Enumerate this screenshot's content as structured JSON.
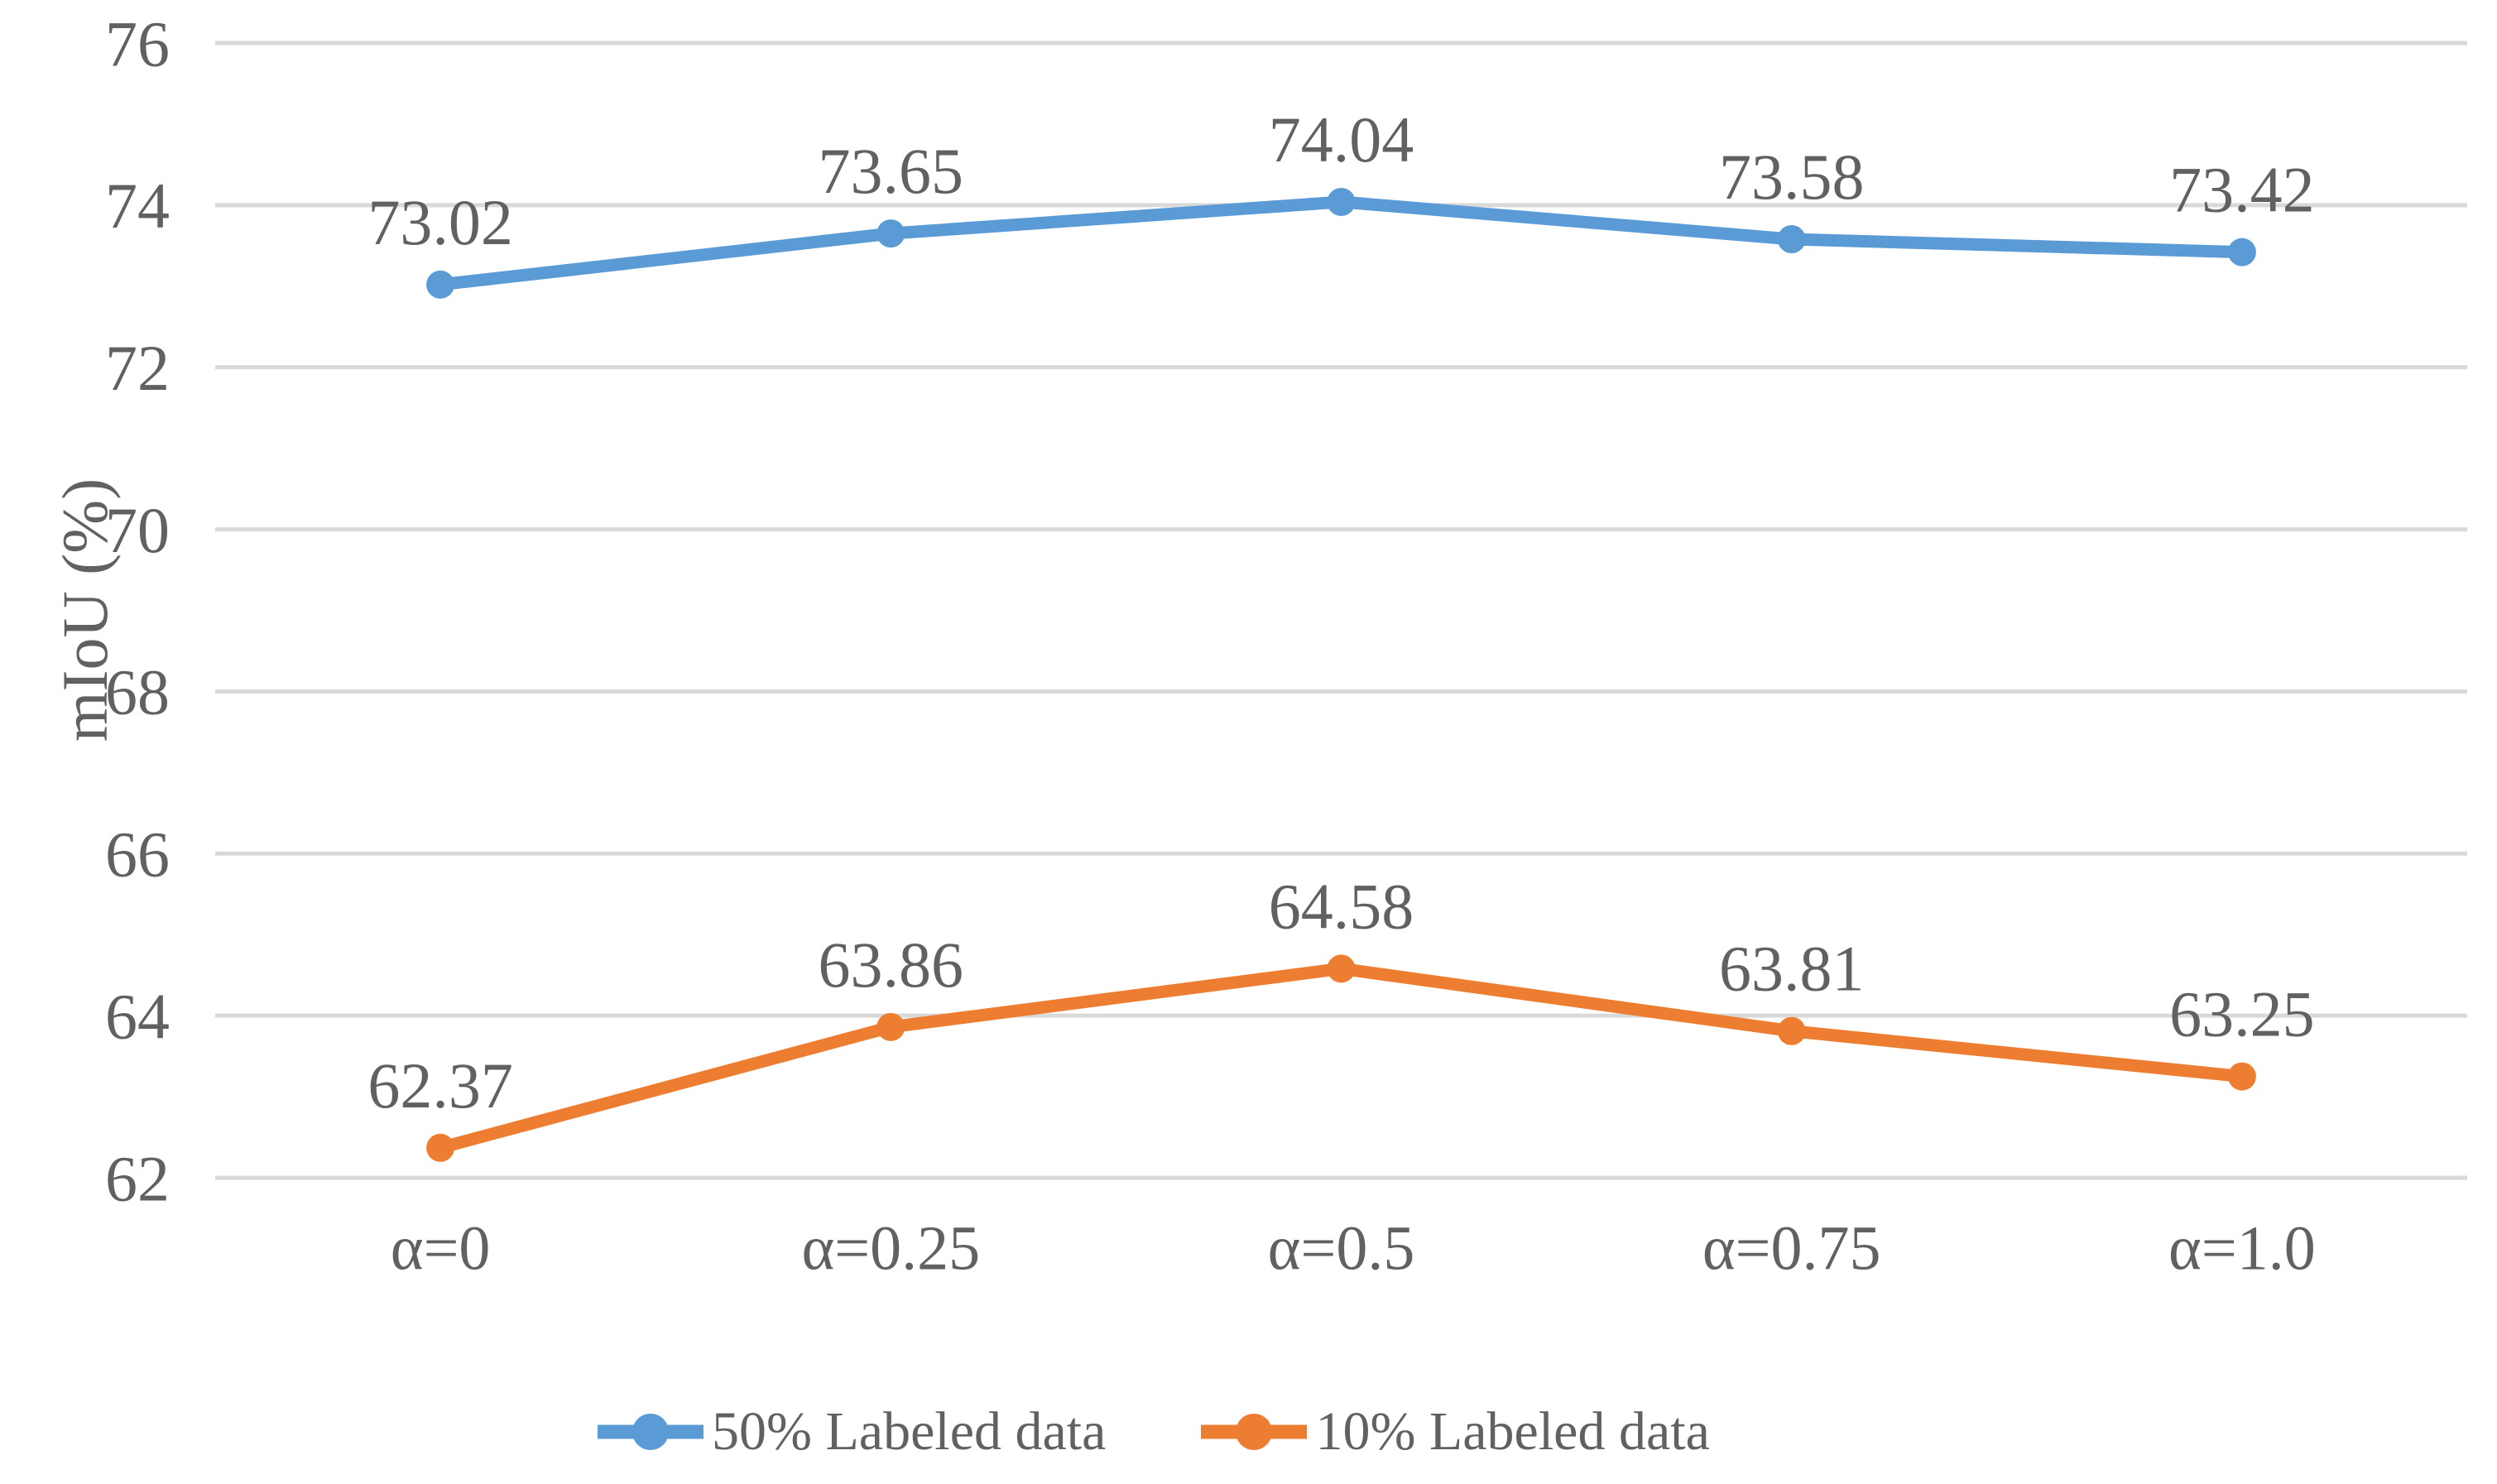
{
  "chart_data": {
    "type": "line",
    "title": "",
    "xlabel": "",
    "ylabel": "mIoU (%)",
    "categories": [
      "α=0",
      "α=0.25",
      "α=0.5",
      "α=0.75",
      "α=1.0"
    ],
    "series": [
      {
        "name": "50% Labeled data",
        "color": "#5B9BD5",
        "values": [
          73.02,
          73.65,
          74.04,
          73.58,
          73.42
        ]
      },
      {
        "name": "10% Labeled data",
        "color": "#ED7D31",
        "values": [
          62.37,
          63.86,
          64.58,
          63.81,
          63.25
        ]
      }
    ],
    "ylim": [
      62,
      76
    ],
    "yticks": [
      62,
      64,
      66,
      68,
      70,
      72,
      74,
      76
    ],
    "grid": "horizontal-only",
    "data_labels": "shown above each point, 2 decimals",
    "legend_position": "bottom-center"
  },
  "colors": {
    "grid": "#D9D9D9",
    "text": "#616161",
    "background": "#FFFFFF",
    "series_blue": "#5B9BD5",
    "series_orange": "#ED7D31"
  }
}
